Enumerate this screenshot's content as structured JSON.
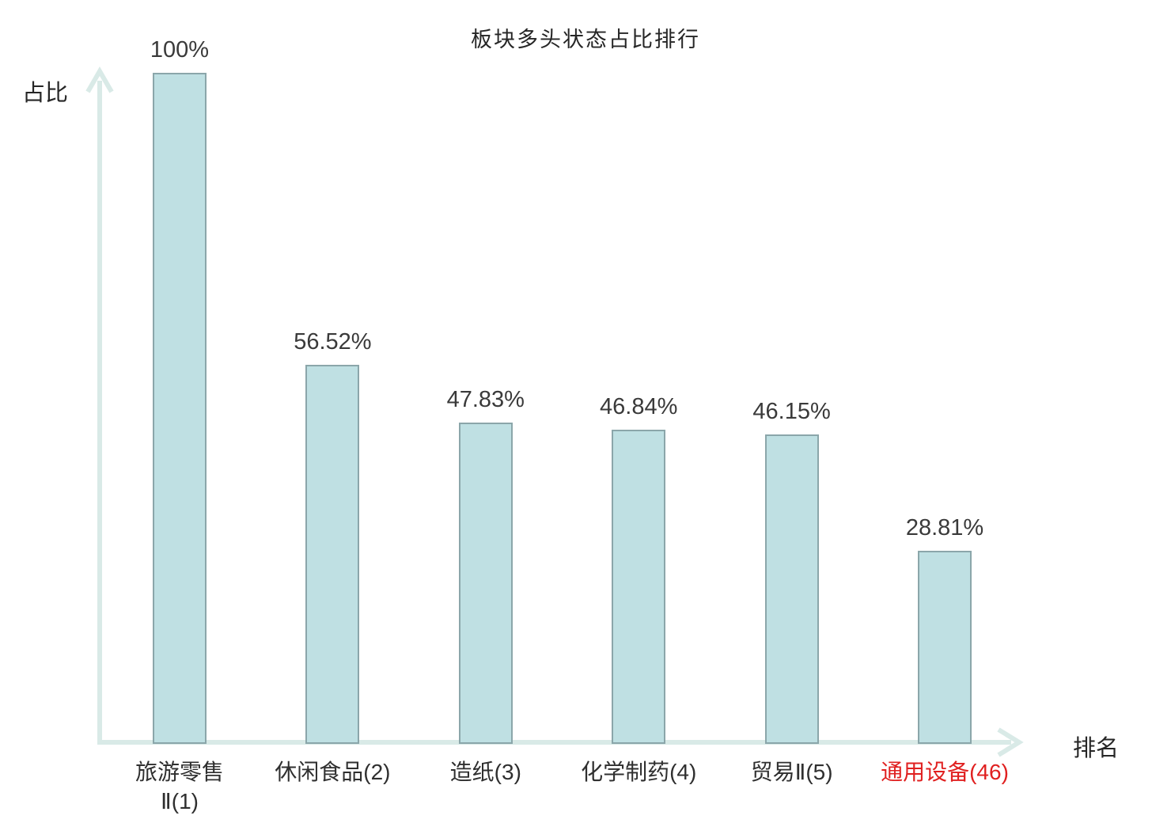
{
  "title": "板块多头状态占比排行",
  "y_axis_label": "占比",
  "x_axis_label": "排名",
  "chart_data": {
    "type": "bar",
    "title": "板块多头状态占比排行",
    "xlabel": "排名",
    "ylabel": "占比",
    "ylim": [
      0,
      100
    ],
    "grid": false,
    "legend": false,
    "categories": [
      "旅游零售\nⅡ(1)",
      "休闲食品(2)",
      "造纸(3)",
      "化学制药(4)",
      "贸易Ⅱ(5)",
      "通用设备(46)"
    ],
    "values": [
      100,
      56.52,
      47.83,
      46.84,
      46.15,
      28.81
    ],
    "value_labels": [
      "100%",
      "56.52%",
      "47.83%",
      "46.84%",
      "46.15%",
      "28.81%"
    ],
    "highlight_index": 5,
    "colors": {
      "bar_fill": "#bfe0e3",
      "bar_border": "#8ba6aa",
      "axis": "#d9eae7",
      "value_text": "#3a3a3a",
      "category_text": "#2f2f2f",
      "highlight_text": "#e02020"
    }
  }
}
